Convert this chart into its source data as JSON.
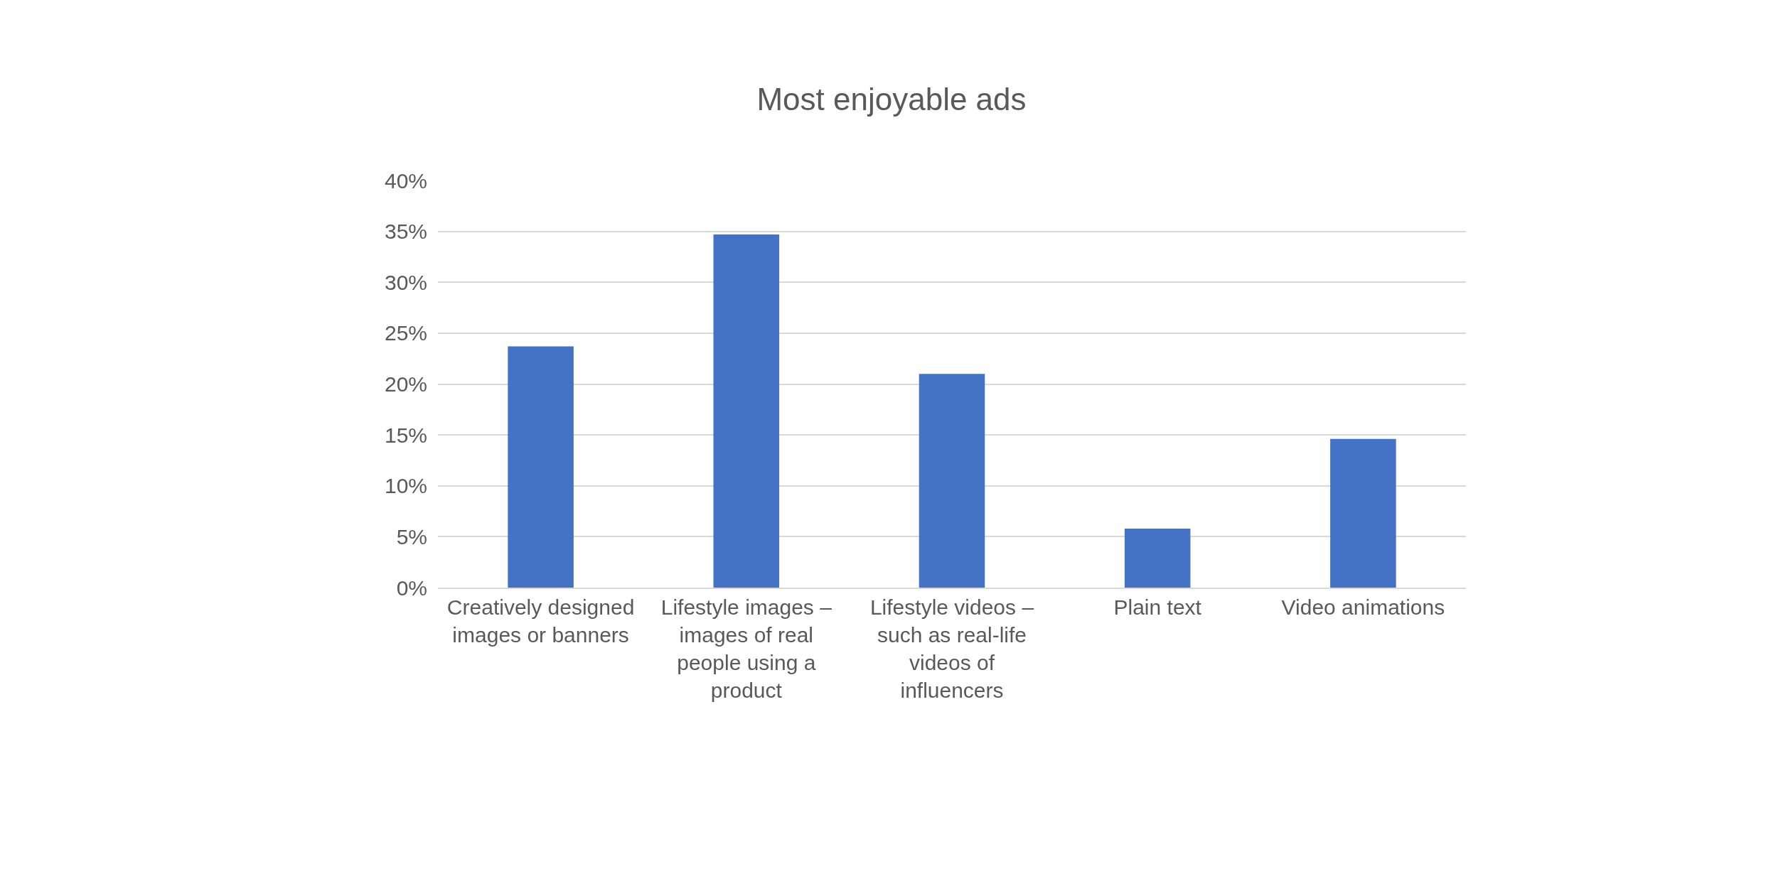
{
  "chart_data": {
    "type": "bar",
    "title": "Most enjoyable ads",
    "categories": [
      "Creatively designed images or banners",
      "Lifestyle images – images of real people using a product",
      "Lifestyle videos – such as real-life videos of influencers",
      "Plain text",
      "Video animations"
    ],
    "values": [
      23.7,
      34.7,
      21.0,
      5.8,
      14.6
    ],
    "color": "#4472c4",
    "ylim": [
      0,
      40
    ],
    "yticks": [
      {
        "value": 0,
        "label": "0%"
      },
      {
        "value": 5,
        "label": "5%"
      },
      {
        "value": 10,
        "label": "10%"
      },
      {
        "value": 15,
        "label": "15%"
      },
      {
        "value": 20,
        "label": "20%"
      },
      {
        "value": 25,
        "label": "25%"
      },
      {
        "value": 30,
        "label": "30%"
      },
      {
        "value": 35,
        "label": "35%"
      },
      {
        "value": 40,
        "label": "40%"
      }
    ],
    "grid": "y",
    "legend": false
  }
}
